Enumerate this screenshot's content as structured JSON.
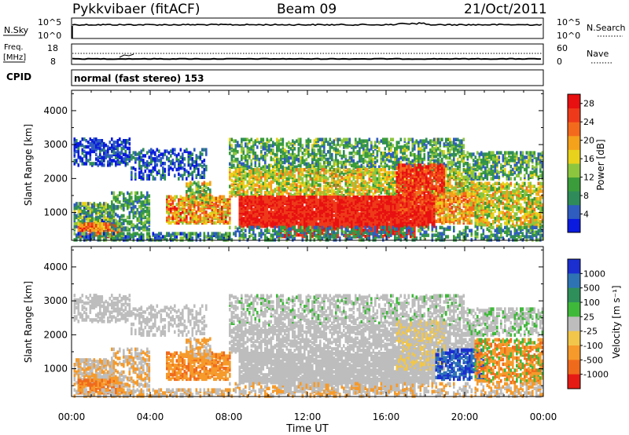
{
  "header": {
    "station": "Pykkvibaer (fitACF)",
    "beam": "Beam 09",
    "date": "21/Oct/2011"
  },
  "panels": {
    "nsky": {
      "left_label": "N.Sky",
      "left_ticks": [
        "10^5",
        "10^0"
      ],
      "right_ticks": [
        "10^5",
        "10^0"
      ],
      "right_label": "N.Search"
    },
    "freq": {
      "left_label_1": "Freq.",
      "left_label_2": "[MHz]",
      "left_ticks": [
        "18",
        "8"
      ],
      "right_ticks": [
        "60",
        "0"
      ],
      "right_label": "Nave"
    },
    "cpid": {
      "label": "CPID",
      "value": "normal (fast stereo) 153"
    }
  },
  "chart_data": [
    {
      "type": "heatmap",
      "name": "power",
      "xlabel": "",
      "ylabel": "Slant Range [km]",
      "x_ticks": [
        "00:00",
        "04:00",
        "08:00",
        "12:00",
        "16:00",
        "20:00",
        "00:00"
      ],
      "y_ticks": [
        1000,
        2000,
        3000,
        4000
      ],
      "ylim": [
        180,
        4600
      ],
      "xlim_hours": [
        0,
        24
      ],
      "colorbar": {
        "label": "Power [dB]",
        "ticks": [
          "4",
          "8",
          "12",
          "16",
          "20",
          "24",
          "28"
        ],
        "range": [
          0,
          30
        ],
        "colors": [
          "#0a1adf",
          "#2f5dbf",
          "#2f8c5a",
          "#3a9c3a",
          "#8cc63f",
          "#e8d21c",
          "#f4a11c",
          "#f46a1c",
          "#ee3a1a",
          "#e81010"
        ]
      }
    },
    {
      "type": "heatmap",
      "name": "velocity",
      "xlabel": "Time UT",
      "ylabel": "Slant Range [km]",
      "x_ticks": [
        "00:00",
        "04:00",
        "08:00",
        "12:00",
        "16:00",
        "20:00",
        "00:00"
      ],
      "y_ticks": [
        1000,
        2000,
        3000,
        4000
      ],
      "ylim": [
        180,
        4600
      ],
      "xlim_hours": [
        0,
        24
      ],
      "colorbar": {
        "label": "Velocity [m s⁻¹]",
        "ticks": [
          "1000",
          "500",
          "100",
          "25",
          "-25",
          "-100",
          "-500",
          "-1000"
        ],
        "colors": [
          "#1b2fd0",
          "#2e74b5",
          "#2f8f5a",
          "#3fb93a",
          "#bdbdbd",
          "#f1c64a",
          "#f59a2b",
          "#f06a1c",
          "#e61a14"
        ]
      }
    }
  ]
}
